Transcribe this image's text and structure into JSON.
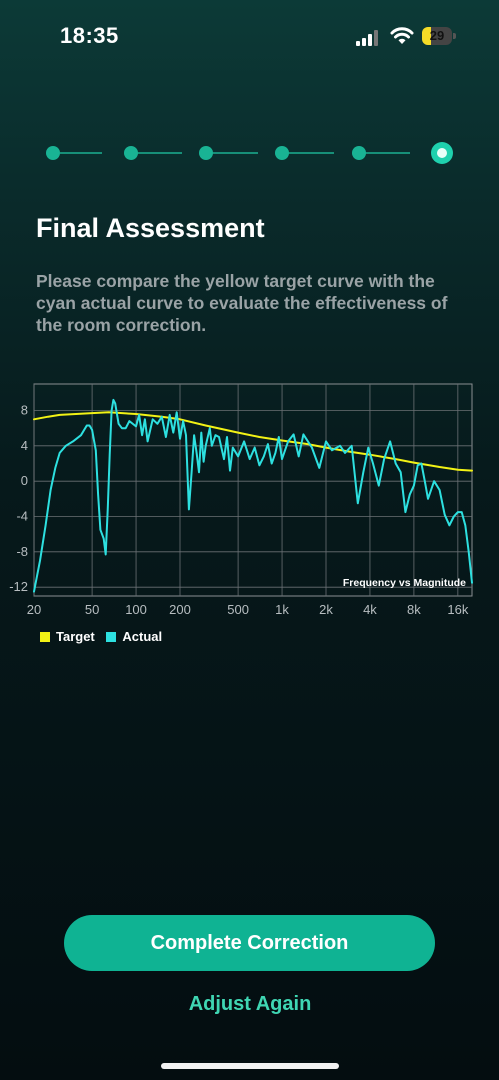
{
  "status_bar": {
    "time": "18:35",
    "battery": "29",
    "battery_level": 0.29
  },
  "stepper": {
    "total_steps": 6,
    "current_step": 6
  },
  "page": {
    "title": "Final Assessment",
    "description": "Please compare the yellow target curve with the cyan actual curve to evaluate the effectiveness of the room correction."
  },
  "colors": {
    "target": "#f2f215",
    "actual": "#2de0e0",
    "accent": "#0fb393",
    "link": "#3fd6b3"
  },
  "chart_data": {
    "type": "line",
    "annotation": "Frequency vs Magnitude",
    "x_scale": "log",
    "xlim": [
      20,
      20000
    ],
    "ylim": [
      -13,
      11
    ],
    "x_ticks": [
      {
        "v": 20,
        "label": "20"
      },
      {
        "v": 50,
        "label": "50"
      },
      {
        "v": 100,
        "label": "100"
      },
      {
        "v": 200,
        "label": "200"
      },
      {
        "v": 500,
        "label": "500"
      },
      {
        "v": 1000,
        "label": "1k"
      },
      {
        "v": 2000,
        "label": "2k"
      },
      {
        "v": 4000,
        "label": "4k"
      },
      {
        "v": 8000,
        "label": "8k"
      },
      {
        "v": 16000,
        "label": "16k"
      }
    ],
    "y_ticks": [
      {
        "v": 8,
        "label": "8"
      },
      {
        "v": 4,
        "label": "4"
      },
      {
        "v": 0,
        "label": "0"
      },
      {
        "v": -4,
        "label": "-4"
      },
      {
        "v": -8,
        "label": "-8"
      },
      {
        "v": -12,
        "label": "-12"
      }
    ],
    "series": [
      {
        "name": "Target",
        "color": "#f2f215",
        "points": [
          [
            20,
            7.0
          ],
          [
            25,
            7.3
          ],
          [
            30,
            7.5
          ],
          [
            50,
            7.7
          ],
          [
            65,
            7.8
          ],
          [
            100,
            7.6
          ],
          [
            150,
            7.3
          ],
          [
            200,
            7.0
          ],
          [
            300,
            6.3
          ],
          [
            500,
            5.5
          ],
          [
            700,
            5.0
          ],
          [
            1000,
            4.6
          ],
          [
            1500,
            4.2
          ],
          [
            2000,
            3.8
          ],
          [
            3000,
            3.3
          ],
          [
            4000,
            3.0
          ],
          [
            6000,
            2.5
          ],
          [
            8000,
            2.1
          ],
          [
            12000,
            1.6
          ],
          [
            16000,
            1.3
          ],
          [
            20000,
            1.2
          ]
        ]
      },
      {
        "name": "Actual",
        "color": "#2de0e0",
        "points": [
          [
            20,
            -12.5
          ],
          [
            22,
            -9
          ],
          [
            24,
            -5
          ],
          [
            26,
            -1
          ],
          [
            28,
            1.5
          ],
          [
            30,
            3.2
          ],
          [
            33,
            4
          ],
          [
            37,
            4.5
          ],
          [
            42,
            5.2
          ],
          [
            46,
            6.3
          ],
          [
            48,
            6.3
          ],
          [
            50,
            5.8
          ],
          [
            53,
            3.5
          ],
          [
            55,
            -1.5
          ],
          [
            57,
            -5.5
          ],
          [
            60,
            -6.5
          ],
          [
            62,
            -8.3
          ],
          [
            64,
            -3
          ],
          [
            66,
            3
          ],
          [
            68,
            8
          ],
          [
            70,
            9.2
          ],
          [
            72,
            8.8
          ],
          [
            76,
            6.5
          ],
          [
            80,
            6
          ],
          [
            85,
            6
          ],
          [
            90,
            6.8
          ],
          [
            100,
            6.2
          ],
          [
            105,
            7.5
          ],
          [
            110,
            5.2
          ],
          [
            115,
            7
          ],
          [
            120,
            4.5
          ],
          [
            130,
            7
          ],
          [
            140,
            6.5
          ],
          [
            150,
            7.3
          ],
          [
            160,
            5.0
          ],
          [
            170,
            7.5
          ],
          [
            180,
            5.5
          ],
          [
            190,
            7.8
          ],
          [
            200,
            4.8
          ],
          [
            210,
            6.8
          ],
          [
            220,
            5.2
          ],
          [
            230,
            -3.2
          ],
          [
            240,
            1
          ],
          [
            250,
            5.2
          ],
          [
            260,
            3.2
          ],
          [
            270,
            1
          ],
          [
            280,
            5.5
          ],
          [
            290,
            2.2
          ],
          [
            300,
            4
          ],
          [
            320,
            6
          ],
          [
            330,
            4
          ],
          [
            350,
            5.2
          ],
          [
            370,
            5.0
          ],
          [
            400,
            2.5
          ],
          [
            420,
            5.0
          ],
          [
            440,
            1.2
          ],
          [
            460,
            3.8
          ],
          [
            500,
            2.8
          ],
          [
            550,
            4.5
          ],
          [
            600,
            2.5
          ],
          [
            650,
            3.8
          ],
          [
            700,
            1.8
          ],
          [
            750,
            2.8
          ],
          [
            800,
            4.2
          ],
          [
            850,
            2.0
          ],
          [
            900,
            3.2
          ],
          [
            950,
            5.0
          ],
          [
            1000,
            2.5
          ],
          [
            1100,
            4.5
          ],
          [
            1200,
            5.3
          ],
          [
            1300,
            2.8
          ],
          [
            1400,
            5.3
          ],
          [
            1600,
            3.8
          ],
          [
            1800,
            1.5
          ],
          [
            2000,
            4.5
          ],
          [
            2200,
            3.5
          ],
          [
            2500,
            4.0
          ],
          [
            2700,
            3.2
          ],
          [
            3000,
            4.0
          ],
          [
            3300,
            -2.5
          ],
          [
            3600,
            1.0
          ],
          [
            3900,
            3.8
          ],
          [
            4200,
            2.0
          ],
          [
            4600,
            -0.5
          ],
          [
            5000,
            2.5
          ],
          [
            5500,
            4.5
          ],
          [
            6000,
            2.0
          ],
          [
            6500,
            1.0
          ],
          [
            7000,
            -3.5
          ],
          [
            7500,
            -1.5
          ],
          [
            8000,
            -0.5
          ],
          [
            8500,
            1.8
          ],
          [
            9000,
            2.0
          ],
          [
            9500,
            0.0
          ],
          [
            10000,
            -2.0
          ],
          [
            11000,
            0.0
          ],
          [
            12000,
            -1.0
          ],
          [
            13000,
            -3.8
          ],
          [
            14000,
            -5.0
          ],
          [
            15000,
            -4.0
          ],
          [
            16000,
            -3.5
          ],
          [
            17000,
            -3.5
          ],
          [
            18000,
            -5.0
          ],
          [
            19000,
            -8.0
          ],
          [
            20000,
            -11.5
          ]
        ]
      }
    ]
  },
  "legend": {
    "target_label": "Target",
    "actual_label": "Actual"
  },
  "buttons": {
    "primary_label": "Complete Correction",
    "secondary_label": "Adjust Again"
  }
}
